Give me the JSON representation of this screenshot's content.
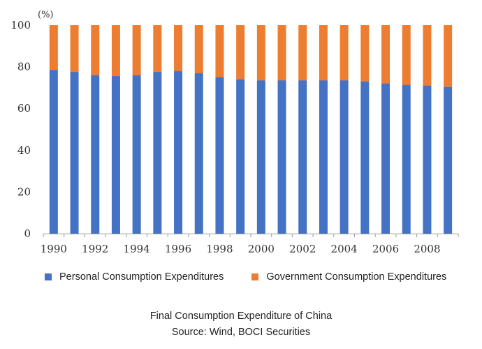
{
  "chart_data": {
    "type": "bar",
    "stacked": true,
    "title": "",
    "y_unit_label": "(%)",
    "ylim": [
      0,
      100
    ],
    "y_ticks": [
      0,
      20,
      40,
      60,
      80,
      100
    ],
    "x_tick_labels": [
      "1990",
      "1992",
      "1994",
      "1996",
      "1998",
      "2000",
      "2002",
      "2004",
      "2006",
      "2008"
    ],
    "categories": [
      "1990",
      "1991",
      "1992",
      "1993",
      "1994",
      "1995",
      "1996",
      "1997",
      "1998",
      "1999",
      "2000",
      "2001",
      "2002",
      "2003",
      "2004",
      "2005",
      "2006",
      "2007",
      "2008",
      "2009"
    ],
    "series": [
      {
        "name": "Personal Consumption Expenditures",
        "color": "#4472C4",
        "values": [
          78.5,
          77.5,
          76,
          75.5,
          76,
          77.5,
          78,
          77,
          75,
          74,
          73.5,
          73.5,
          73.5,
          73.5,
          73.5,
          73,
          72,
          71.3,
          71,
          70.5
        ]
      },
      {
        "name": "Government Consumption Expenditures",
        "color": "#ED7D31",
        "values": [
          21.5,
          22.5,
          24,
          24.5,
          24,
          22.5,
          22,
          23,
          25,
          26,
          26.5,
          26.5,
          26.5,
          26.5,
          26.5,
          27,
          28,
          28.7,
          29,
          29.5
        ]
      }
    ],
    "grid": false,
    "legend_position": "bottom"
  },
  "caption": {
    "title": "Final Consumption Expenditure of China",
    "source": "Source: Wind, BOCI Securities"
  }
}
